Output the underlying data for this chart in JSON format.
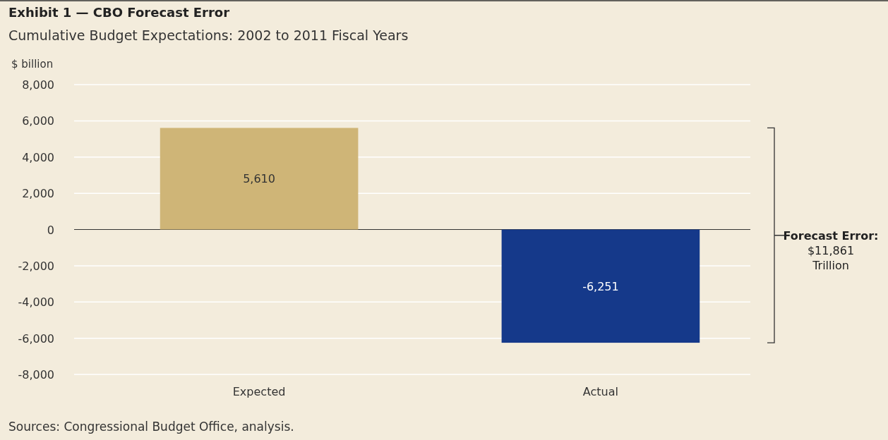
{
  "chart_data": {
    "type": "bar",
    "title": "Exhibit 1 — CBO Forecast Error",
    "subtitle": "Cumulative Budget Expectations: 2002 to 2011 Fiscal Years",
    "ylabel": "$ billion",
    "categories": [
      "Expected",
      "Actual"
    ],
    "values": [
      5610,
      -6251
    ],
    "colors": [
      "#cfb577",
      "#15398a"
    ],
    "ylim": [
      -8000,
      8000
    ],
    "yticks": [
      {
        "value": -8000,
        "label": "-8,000"
      },
      {
        "value": -6000,
        "label": "-6,000"
      },
      {
        "value": -4000,
        "label": "-4,000"
      },
      {
        "value": -2000,
        "label": "-2,000"
      },
      0,
      {
        "value": 2000,
        "label": "2,000"
      },
      {
        "value": 4000,
        "label": "4,000"
      },
      {
        "value": 6000,
        "label": "6,000"
      },
      {
        "value": 8000,
        "label": "8,000"
      }
    ],
    "grid": "y",
    "value_labels": [
      "5,610",
      "-6,251"
    ],
    "annotations": [
      "Forecast Error:\n$11,861\nTrillion",
      "Sources: Congressional Budget Office, analysis."
    ]
  }
}
